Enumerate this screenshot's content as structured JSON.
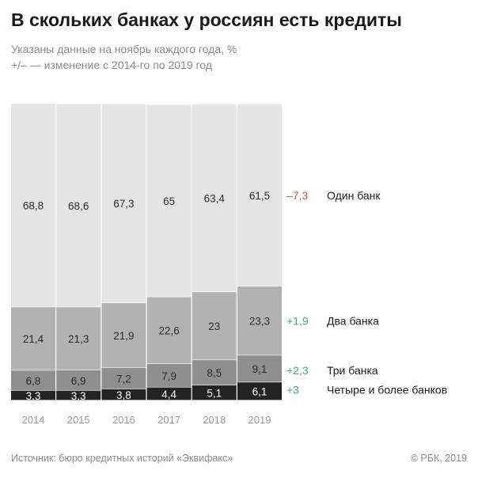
{
  "header": {
    "title": "В скольких банках у россиян есть кредиты",
    "subtitle_1": "Указаны данные на ноябрь каждого года, %",
    "subtitle_2": "+/– — изменение с 2014-го по 2019 год"
  },
  "footer": {
    "source": "Источник: бюро кредитных историй «Эквифакс»",
    "credit": "© РБК, 2019"
  },
  "colors": {
    "one_bank": "#e4e4e4",
    "two_banks": "#b2b2b2",
    "three_banks": "#8f8f8f",
    "four_plus_banks": "#232323",
    "label_dark": "#2b2b2b",
    "label_light": "#ffffff",
    "negative": "#d0534c",
    "positive": "#34ad86",
    "tick": "#9a9a9a"
  },
  "chart_data": {
    "type": "bar",
    "stacked": true,
    "categories": [
      "2014",
      "2015",
      "2016",
      "2017",
      "2018",
      "2019"
    ],
    "series": [
      {
        "name": "Четыре и более банков",
        "values": [
          3.3,
          3.3,
          3.8,
          4.4,
          5.1,
          6.1
        ],
        "labels": [
          "3,3",
          "3,3",
          "3,8",
          "4,4",
          "5,1",
          "6,1"
        ],
        "change": "+3"
      },
      {
        "name": "Три банка",
        "values": [
          6.8,
          6.9,
          7.2,
          7.9,
          8.5,
          9.1
        ],
        "labels": [
          "6,8",
          "6,9",
          "7,2",
          "7,9",
          "8,5",
          "9,1"
        ],
        "change": "+2,3"
      },
      {
        "name": "Два банка",
        "values": [
          21.4,
          21.3,
          21.9,
          22.6,
          23,
          23.3
        ],
        "labels": [
          "21,4",
          "21,3",
          "21,9",
          "22,6",
          "23",
          "23,3"
        ],
        "change": "+1,9"
      },
      {
        "name": "Один банк",
        "values": [
          68.8,
          68.6,
          67.3,
          65,
          63.4,
          61.5
        ],
        "labels": [
          "68,8",
          "68,6",
          "67,3",
          "65",
          "63,4",
          "61,5"
        ],
        "change": "–7,3"
      }
    ],
    "ylim": [
      0,
      100
    ],
    "grid": false,
    "legend": "right"
  }
}
